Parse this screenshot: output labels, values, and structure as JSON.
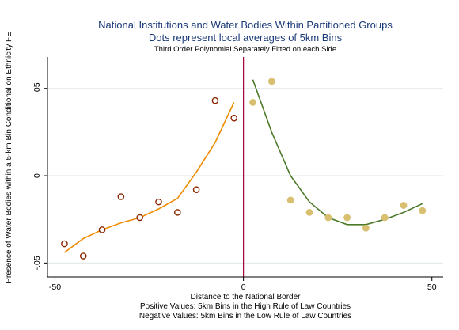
{
  "chart_data": {
    "type": "scatter",
    "title": "National Institutions and Water Bodies Within Partitioned Groups",
    "subtitle": "Dots represent local averages of 5km Bins",
    "note": "Third Order Polynomial Separately Fitted on each Side",
    "xlabel": "Distance to the National Border",
    "xlabel_notes": [
      "Positive  Values: 5km Bins in the High Rule of Law Countries",
      "Negative Values: 5km Bins in the Low Rule of Law Countries"
    ],
    "ylabel": "Presence of Water Bodies within a 5-km Bin Conditional on Ethnicity FE",
    "xlim": [
      -52,
      53
    ],
    "ylim": [
      -0.058,
      0.068
    ],
    "x_ticks": [
      -50,
      0,
      50
    ],
    "x_tick_labels": [
      "-50",
      "0",
      "50"
    ],
    "y_ticks": [
      -0.05,
      0,
      0.05
    ],
    "y_tick_labels": [
      "-.05",
      "0",
      ".05"
    ],
    "grid": "horizontal",
    "cutoff_x": 0,
    "colors": {
      "title": "#1a3a78",
      "left_points": "#8b2500",
      "left_fit": "#f08a00",
      "right_points": "#d8c070",
      "right_fit": "#4d7a28",
      "cutoff": "#a0003c",
      "grid": "#dde6ea",
      "axis": "#000000"
    },
    "series": [
      {
        "side": "left",
        "kind": "points",
        "x": [
          -47.5,
          -42.5,
          -37.5,
          -32.5,
          -27.5,
          -22.5,
          -17.5,
          -12.5,
          -7.5,
          -2.5
        ],
        "y": [
          -0.039,
          -0.046,
          -0.031,
          -0.012,
          -0.024,
          -0.015,
          -0.021,
          -0.008,
          0.043,
          0.033
        ]
      },
      {
        "side": "left",
        "kind": "fit",
        "x": [
          -47.5,
          -42.5,
          -37.5,
          -32.5,
          -27.5,
          -22.5,
          -17.5,
          -12.5,
          -7.5,
          -2.5
        ],
        "y": [
          -0.044,
          -0.036,
          -0.031,
          -0.027,
          -0.024,
          -0.019,
          -0.013,
          0.002,
          0.019,
          0.042
        ]
      },
      {
        "side": "right",
        "kind": "points",
        "x": [
          2.5,
          7.5,
          12.5,
          17.5,
          22.5,
          27.5,
          32.5,
          37.5,
          42.5,
          47.5
        ],
        "y": [
          0.042,
          0.054,
          -0.014,
          -0.021,
          -0.024,
          -0.024,
          -0.03,
          -0.024,
          -0.017,
          -0.02
        ]
      },
      {
        "side": "right",
        "kind": "fit",
        "x": [
          2.5,
          7.5,
          12.5,
          17.5,
          22.5,
          27.5,
          32.5,
          37.5,
          42.5,
          47.5
        ],
        "y": [
          0.055,
          0.025,
          0.0,
          -0.015,
          -0.024,
          -0.028,
          -0.028,
          -0.025,
          -0.021,
          -0.016
        ]
      }
    ]
  }
}
